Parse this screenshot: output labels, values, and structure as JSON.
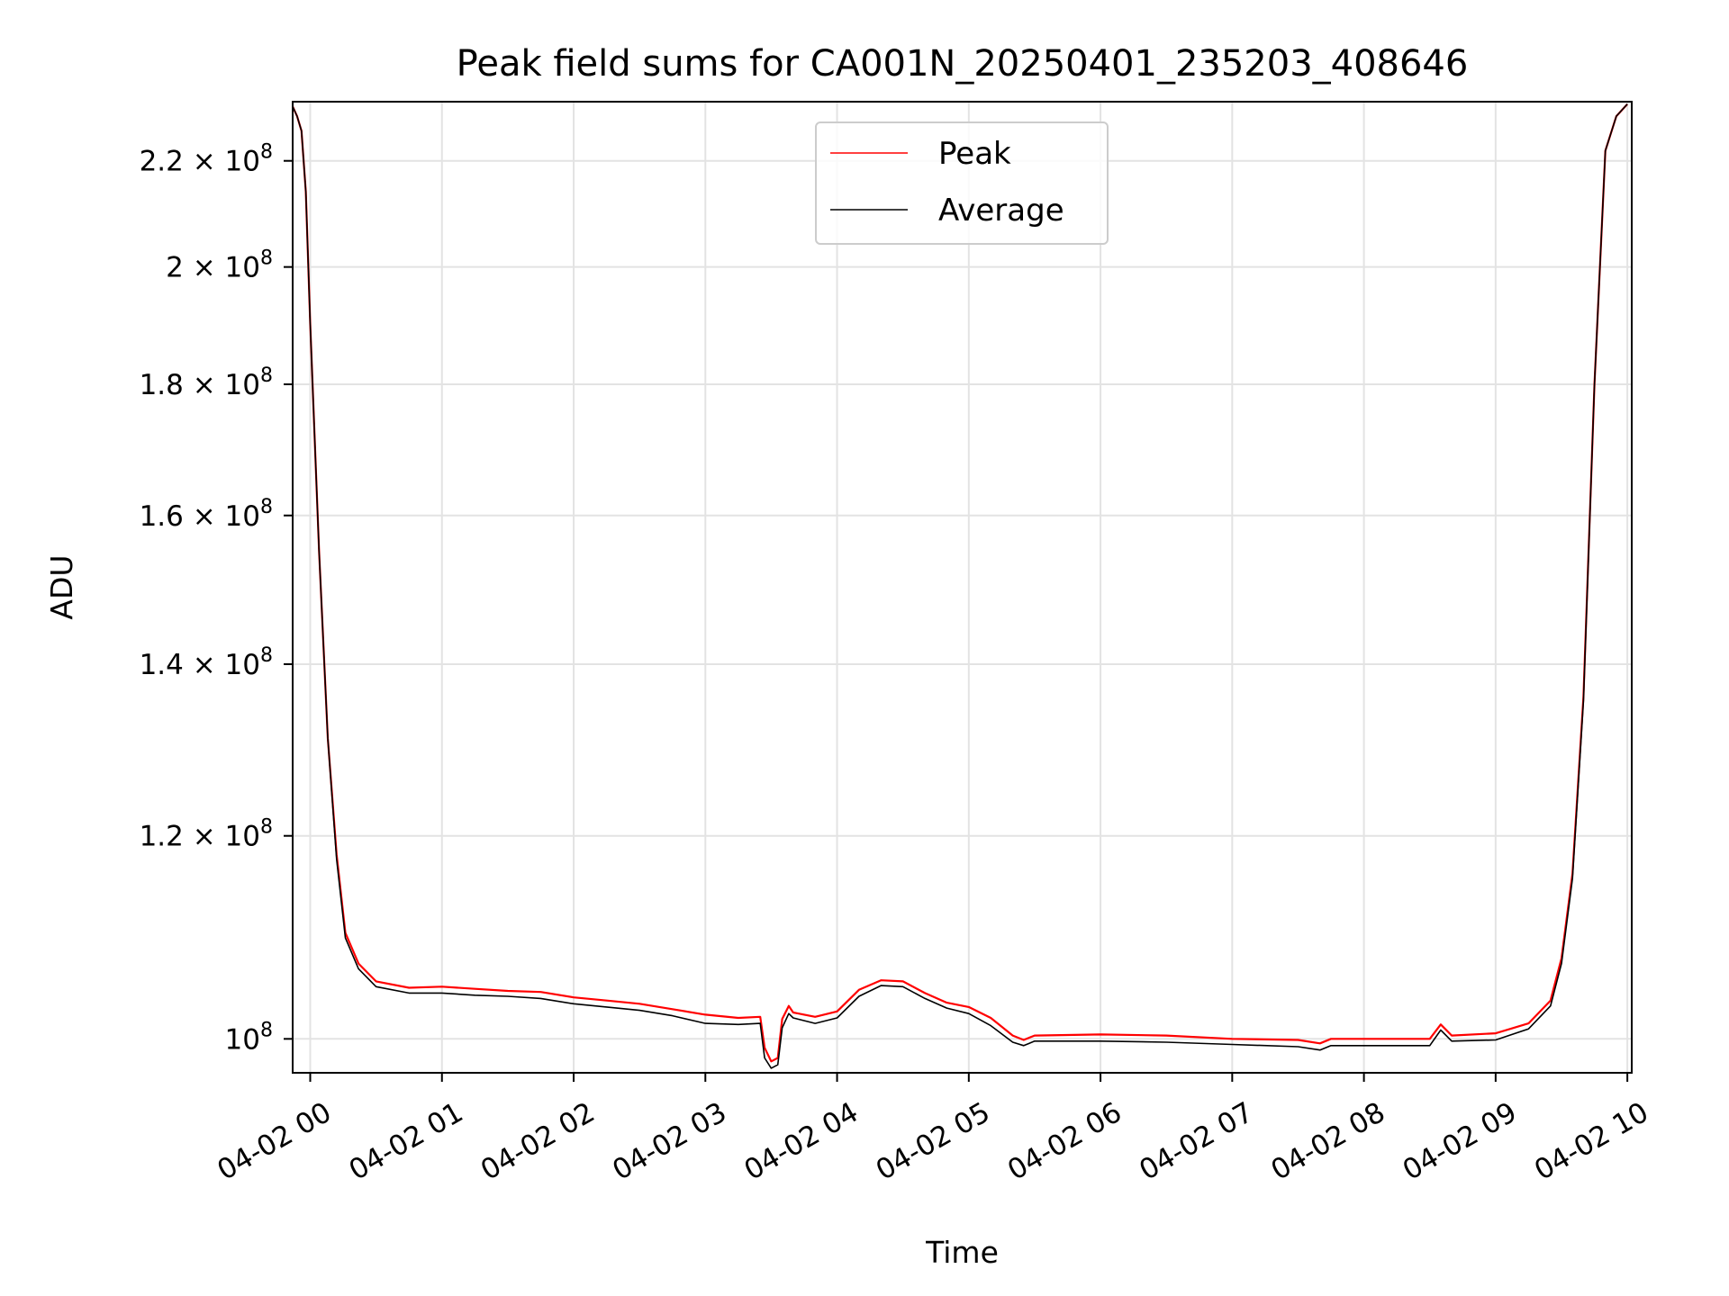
{
  "chart_data": {
    "type": "line",
    "title": "Peak field sums for CA001N_20250401_235203_408646",
    "xlabel": "Time",
    "ylabel": "ADU",
    "y_scale": "log",
    "grid": true,
    "legend_position": "top-center",
    "x_ticks": [
      "04-02 00",
      "04-02 01",
      "04-02 02",
      "04-02 03",
      "04-02 04",
      "04-02 05",
      "04-02 06",
      "04-02 07",
      "04-02 08",
      "04-02 09",
      "04-02 10"
    ],
    "y_ticks": [
      {
        "value": 100000000,
        "mantissa": "",
        "exp": "8"
      },
      {
        "value": 120000000,
        "mantissa": "1.2",
        "exp": "8"
      },
      {
        "value": 140000000,
        "mantissa": "1.4",
        "exp": "8"
      },
      {
        "value": 160000000,
        "mantissa": "1.6",
        "exp": "8"
      },
      {
        "value": 180000000,
        "mantissa": "1.8",
        "exp": "8"
      },
      {
        "value": 200000000,
        "mantissa": "2",
        "exp": "8"
      },
      {
        "value": 220000000,
        "mantissa": "2.2",
        "exp": "8"
      }
    ],
    "x_range": [
      "04-01 23:52",
      "04-02 10:02"
    ],
    "y_range": [
      97000000,
      232000000
    ],
    "series": [
      {
        "name": "Peak",
        "color": "#ff0000",
        "points": [
          [
            "04-01 23:52",
            231000000
          ],
          [
            "04-01 23:54",
            229000000
          ],
          [
            "04-01 23:56",
            226000000
          ],
          [
            "04-01 23:58",
            214000000
          ],
          [
            "04-02 00:00",
            190000000
          ],
          [
            "04-02 00:04",
            155000000
          ],
          [
            "04-02 00:08",
            131000000
          ],
          [
            "04-02 00:12",
            118000000
          ],
          [
            "04-02 00:16",
            110000000
          ],
          [
            "04-02 00:22",
            107000000
          ],
          [
            "04-02 00:30",
            105300000
          ],
          [
            "04-02 00:45",
            104700000
          ],
          [
            "04-02 01:00",
            104800000
          ],
          [
            "04-02 01:15",
            104600000
          ],
          [
            "04-02 01:30",
            104400000
          ],
          [
            "04-02 01:45",
            104300000
          ],
          [
            "04-02 02:00",
            103800000
          ],
          [
            "04-02 02:15",
            103500000
          ],
          [
            "04-02 02:30",
            103200000
          ],
          [
            "04-02 02:45",
            102700000
          ],
          [
            "04-02 03:00",
            102200000
          ],
          [
            "04-02 03:15",
            101900000
          ],
          [
            "04-02 03:25",
            102000000
          ],
          [
            "04-02 03:27",
            99200000
          ],
          [
            "04-02 03:30",
            98000000
          ],
          [
            "04-02 03:33",
            98300000
          ],
          [
            "04-02 03:35",
            101800000
          ],
          [
            "04-02 03:38",
            103000000
          ],
          [
            "04-02 03:40",
            102400000
          ],
          [
            "04-02 03:50",
            102000000
          ],
          [
            "04-02 04:00",
            102500000
          ],
          [
            "04-02 04:10",
            104500000
          ],
          [
            "04-02 04:20",
            105400000
          ],
          [
            "04-02 04:30",
            105300000
          ],
          [
            "04-02 04:40",
            104200000
          ],
          [
            "04-02 04:50",
            103300000
          ],
          [
            "04-02 05:00",
            102900000
          ],
          [
            "04-02 05:10",
            101900000
          ],
          [
            "04-02 05:20",
            100300000
          ],
          [
            "04-02 05:25",
            99900000
          ],
          [
            "04-02 05:30",
            100300000
          ],
          [
            "04-02 06:00",
            100400000
          ],
          [
            "04-02 06:30",
            100300000
          ],
          [
            "04-02 07:00",
            100000000
          ],
          [
            "04-02 07:30",
            99900000
          ],
          [
            "04-02 07:40",
            99600000
          ],
          [
            "04-02 07:45",
            100000000
          ],
          [
            "04-02 08:00",
            100000000
          ],
          [
            "04-02 08:30",
            100000000
          ],
          [
            "04-02 08:35",
            101300000
          ],
          [
            "04-02 08:40",
            100300000
          ],
          [
            "04-02 09:00",
            100500000
          ],
          [
            "04-02 09:15",
            101400000
          ],
          [
            "04-02 09:25",
            103500000
          ],
          [
            "04-02 09:30",
            107500000
          ],
          [
            "04-02 09:35",
            116000000
          ],
          [
            "04-02 09:40",
            136000000
          ],
          [
            "04-02 09:45",
            180000000
          ],
          [
            "04-02 09:50",
            222000000
          ],
          [
            "04-02 09:55",
            229000000
          ],
          [
            "04-02 10:00",
            231500000
          ]
        ]
      },
      {
        "name": "Average",
        "color": "#000000",
        "points": [
          [
            "04-01 23:52",
            231000000
          ],
          [
            "04-01 23:54",
            229000000
          ],
          [
            "04-01 23:56",
            226000000
          ],
          [
            "04-01 23:58",
            214000000
          ],
          [
            "04-02 00:00",
            190000000
          ],
          [
            "04-02 00:04",
            155000000
          ],
          [
            "04-02 00:08",
            131000000
          ],
          [
            "04-02 00:12",
            117500000
          ],
          [
            "04-02 00:16",
            109500000
          ],
          [
            "04-02 00:22",
            106500000
          ],
          [
            "04-02 00:30",
            104800000
          ],
          [
            "04-02 00:45",
            104200000
          ],
          [
            "04-02 01:00",
            104200000
          ],
          [
            "04-02 01:15",
            104000000
          ],
          [
            "04-02 01:30",
            103900000
          ],
          [
            "04-02 01:45",
            103700000
          ],
          [
            "04-02 02:00",
            103200000
          ],
          [
            "04-02 02:15",
            102900000
          ],
          [
            "04-02 02:30",
            102600000
          ],
          [
            "04-02 02:45",
            102100000
          ],
          [
            "04-02 03:00",
            101400000
          ],
          [
            "04-02 03:15",
            101300000
          ],
          [
            "04-02 03:25",
            101400000
          ],
          [
            "04-02 03:27",
            98300000
          ],
          [
            "04-02 03:30",
            97400000
          ],
          [
            "04-02 03:33",
            97700000
          ],
          [
            "04-02 03:35",
            101000000
          ],
          [
            "04-02 03:38",
            102300000
          ],
          [
            "04-02 03:40",
            101900000
          ],
          [
            "04-02 03:50",
            101400000
          ],
          [
            "04-02 04:00",
            101900000
          ],
          [
            "04-02 04:10",
            103900000
          ],
          [
            "04-02 04:20",
            104900000
          ],
          [
            "04-02 04:30",
            104800000
          ],
          [
            "04-02 04:40",
            103700000
          ],
          [
            "04-02 04:50",
            102800000
          ],
          [
            "04-02 05:00",
            102300000
          ],
          [
            "04-02 05:10",
            101200000
          ],
          [
            "04-02 05:20",
            99700000
          ],
          [
            "04-02 05:25",
            99400000
          ],
          [
            "04-02 05:30",
            99800000
          ],
          [
            "04-02 06:00",
            99800000
          ],
          [
            "04-02 06:30",
            99700000
          ],
          [
            "04-02 07:00",
            99500000
          ],
          [
            "04-02 07:30",
            99300000
          ],
          [
            "04-02 07:40",
            99000000
          ],
          [
            "04-02 07:45",
            99400000
          ],
          [
            "04-02 08:00",
            99400000
          ],
          [
            "04-02 08:30",
            99400000
          ],
          [
            "04-02 08:35",
            100800000
          ],
          [
            "04-02 08:40",
            99800000
          ],
          [
            "04-02 09:00",
            99900000
          ],
          [
            "04-02 09:15",
            100900000
          ],
          [
            "04-02 09:25",
            103000000
          ],
          [
            "04-02 09:30",
            107000000
          ],
          [
            "04-02 09:35",
            115500000
          ],
          [
            "04-02 09:40",
            135500000
          ],
          [
            "04-02 09:45",
            180000000
          ],
          [
            "04-02 09:50",
            222000000
          ],
          [
            "04-02 09:55",
            229000000
          ],
          [
            "04-02 10:00",
            231500000
          ]
        ]
      }
    ]
  }
}
